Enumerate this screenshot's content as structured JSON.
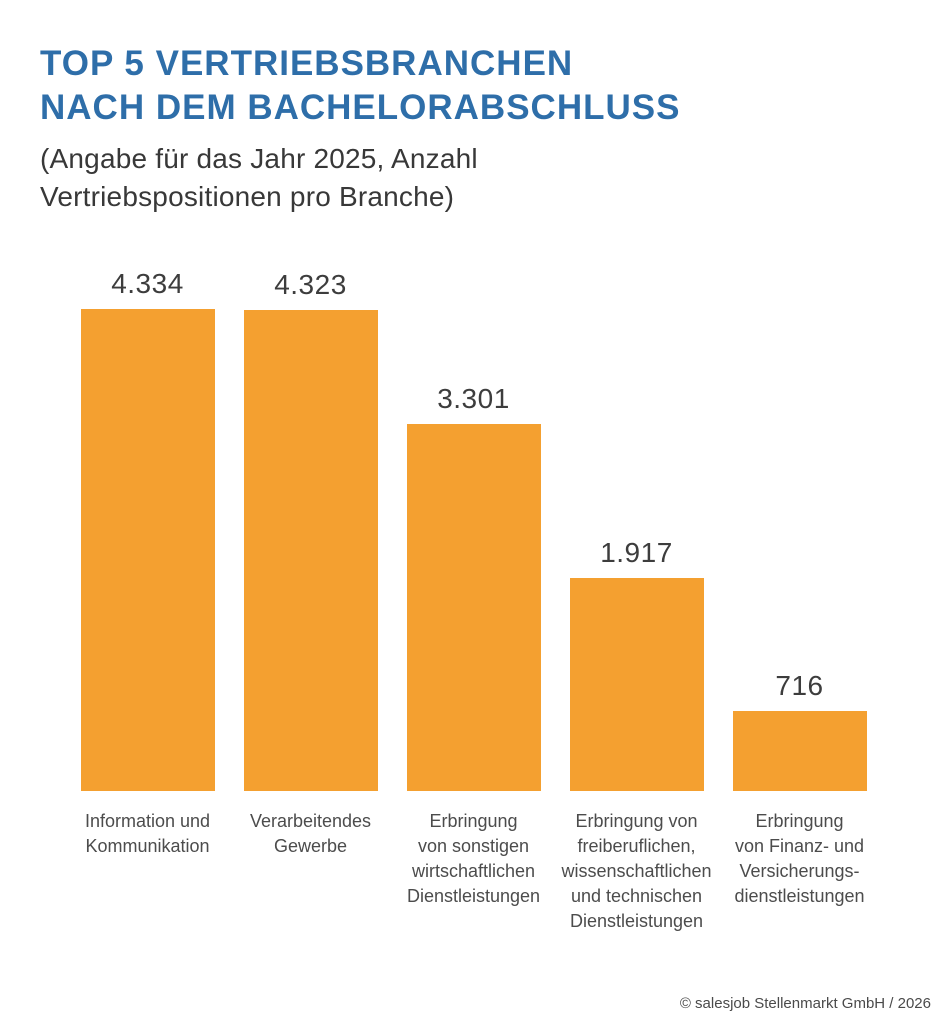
{
  "header": {
    "title_lines": [
      "TOP 5 VERTRIEBSBRANCHEN",
      "NACH DEM BACHELORABSCHLUSS"
    ],
    "subtitle": "(Angabe für das Jahr 2025, Anzahl Vertriebspositionen pro Branche)"
  },
  "chart_data": {
    "type": "bar",
    "orientation": "vertical",
    "title": "TOP 5 VERTRIEBSBRANCHEN NACH DEM BACHELORABSCHLUSS",
    "subtitle": "(Angabe für das Jahr 2025, Anzahl Vertriebspositionen pro Branche)",
    "categories": [
      "Information und Kommunikation",
      "Verarbeitendes Gewerbe",
      "Erbringung von sonstigen wirtschaftlichen Dienstleistungen",
      "Erbringung von freiberuflichen, wissenschaftlichen und technischen Dienstleistungen",
      "Erbringung von Finanz- und Versicherungs-dienstleistungen"
    ],
    "category_display_lines": [
      [
        "Information und",
        "Kommunikation"
      ],
      [
        "Verarbeitendes",
        "Gewerbe"
      ],
      [
        "Erbringung",
        "von sonstigen",
        "wirtschaftlichen",
        "Dienstleistungen"
      ],
      [
        "Erbringung von",
        "freiberuflichen,",
        "wissenschaftlichen",
        "und technischen",
        "Dienstleistungen"
      ],
      [
        "Erbringung",
        "von Finanz- und",
        "Versicherungs-",
        "dienstleistungen"
      ]
    ],
    "values": [
      4334,
      4323,
      3301,
      1917,
      716
    ],
    "value_labels": [
      "4.334",
      "4.323",
      "3.301",
      "1.917",
      "716"
    ],
    "ylim": [
      0,
      4334
    ],
    "grid": false,
    "legend": false,
    "bar_color": "#F4A030"
  },
  "colors": {
    "title_blue": "#2E6EA9",
    "bar_orange": "#F4A030",
    "value_text": "#3D3D3D",
    "category_text": "#4C4C4C"
  },
  "footer": {
    "copyright": "© salesjob Stellenmarkt GmbH / 2026"
  }
}
